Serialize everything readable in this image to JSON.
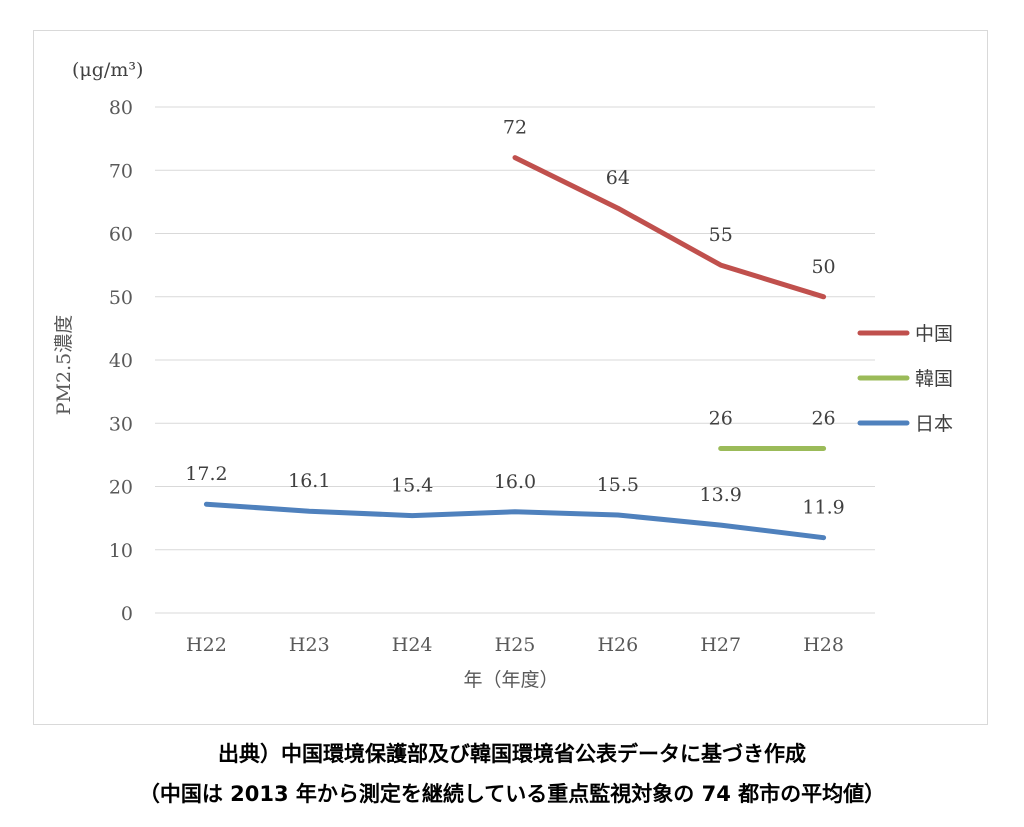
{
  "chart_data": {
    "type": "line",
    "unit_label": "(μg/m³)",
    "ylabel": "PM2.5濃度",
    "xlabel": "年（年度）",
    "categories": [
      "H22",
      "H23",
      "H24",
      "H25",
      "H26",
      "H27",
      "H28"
    ],
    "ylim": [
      0,
      80
    ],
    "yticks": [
      0,
      10,
      20,
      30,
      40,
      50,
      60,
      70,
      80
    ],
    "grid": true,
    "legend_position": "right",
    "series": [
      {
        "name": "中国",
        "color": "#c0504d",
        "values": [
          null,
          null,
          null,
          72,
          64,
          55,
          50
        ],
        "labels": [
          "",
          "",
          "",
          "72",
          "64",
          "55",
          "50"
        ]
      },
      {
        "name": "韓国",
        "color": "#9bbb59",
        "values": [
          null,
          null,
          null,
          null,
          null,
          26,
          26
        ],
        "labels": [
          "",
          "",
          "",
          "",
          "",
          "26",
          "26"
        ]
      },
      {
        "name": "日本",
        "color": "#4f81bd",
        "values": [
          17.2,
          16.1,
          15.4,
          16.0,
          15.5,
          13.9,
          11.9
        ],
        "labels": [
          "17.2",
          "16.1",
          "15.4",
          "16.0",
          "15.5",
          "13.9",
          "11.9"
        ]
      }
    ]
  },
  "caption": {
    "line1": "出典）中国環境保護部及び韓国環境省公表データに基づき作成",
    "line2": "（中国は 2013 年から測定を継続している重点監視対象の 74 都市の平均値）"
  }
}
